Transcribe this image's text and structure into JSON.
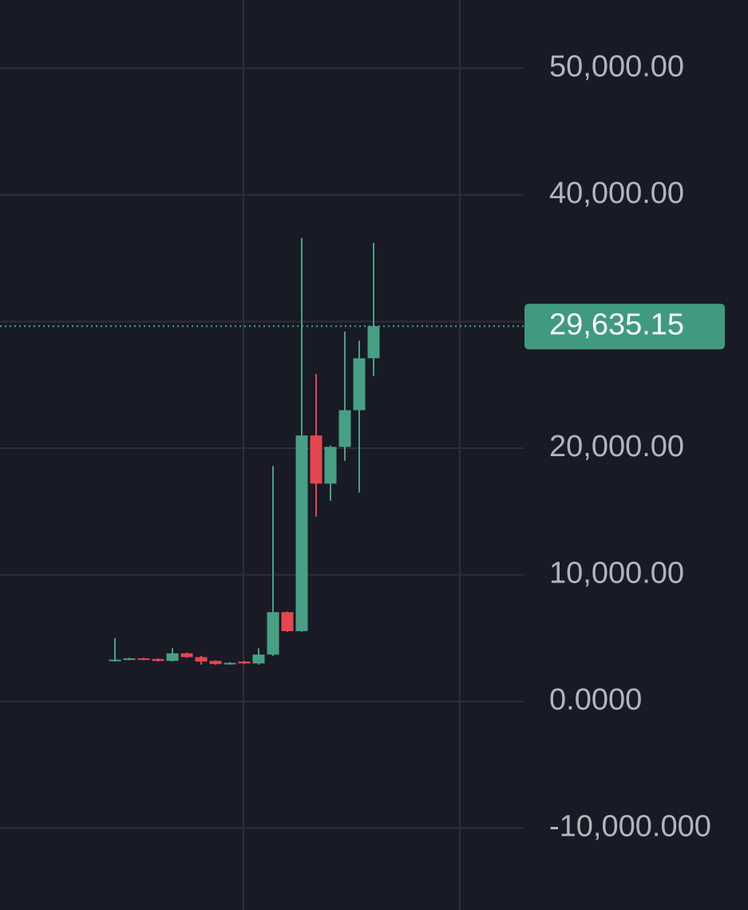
{
  "chart_data": {
    "type": "candlestick",
    "categories": [
      null,
      null,
      null,
      null,
      null,
      null,
      null,
      null,
      null,
      null,
      null,
      null,
      null,
      null,
      null,
      null,
      null,
      null,
      null
    ],
    "open": [
      3200,
      3300,
      3400,
      3350,
      3200,
      3800,
      3500,
      3200,
      2950,
      3150,
      3000,
      3700,
      7050,
      5550,
      21000,
      17200,
      20100,
      23000,
      27100
    ],
    "high": [
      5000,
      3450,
      3450,
      3400,
      4200,
      3850,
      3600,
      3250,
      3100,
      3200,
      4200,
      18600,
      7100,
      36600,
      25850,
      20200,
      29200,
      28500,
      36200
    ],
    "low": [
      3150,
      3250,
      3250,
      3150,
      3150,
      3450,
      2900,
      2900,
      2900,
      2950,
      2900,
      3600,
      5500,
      5500,
      14600,
      15850,
      19000,
      16500,
      25700
    ],
    "close": [
      3300,
      3400,
      3300,
      3200,
      3800,
      3500,
      3150,
      2950,
      3050,
      3000,
      3700,
      7050,
      5550,
      21000,
      17200,
      20100,
      23000,
      27100,
      29635.15
    ],
    "up_color": "#47a085",
    "down_color": "#e5464f",
    "last_price": {
      "value": 29635.15,
      "label": "29,635.15"
    },
    "ylim": [
      -16470,
      55390
    ],
    "yticks": [
      {
        "value": -10000,
        "label": "-10,000.000"
      },
      {
        "value": 0,
        "label": "0.0000"
      },
      {
        "value": 10000,
        "label": "10,000.00"
      },
      {
        "value": 20000,
        "label": "20,000.00"
      },
      {
        "value": 30000,
        "label": null
      },
      {
        "value": 40000,
        "label": "40,000.00"
      },
      {
        "value": 50000,
        "label": "50,000.00"
      }
    ],
    "grid": true
  }
}
